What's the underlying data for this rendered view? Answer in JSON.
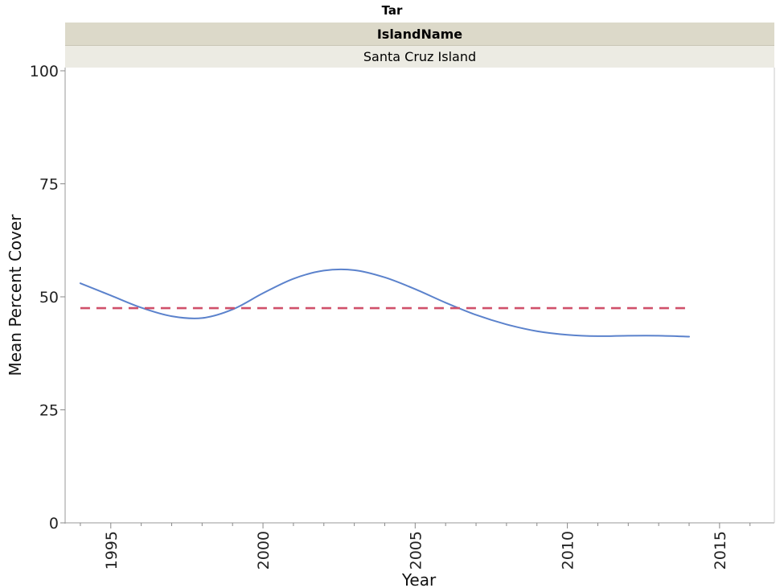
{
  "chart_data": {
    "type": "line",
    "title": "Tar",
    "facet_header": "IslandName",
    "facet_value": "Santa Cruz Island",
    "xlabel": "Year",
    "ylabel": "Mean Percent Cover",
    "xlim": [
      1993.5,
      2016.8
    ],
    "ylim": [
      0,
      100
    ],
    "x_ticks": [
      1995,
      2000,
      2005,
      2010,
      2015
    ],
    "y_ticks": [
      0,
      25,
      50,
      75,
      100
    ],
    "grid": false,
    "series": [
      {
        "style": "smooth-solid",
        "color": "#5b82cc",
        "points": [
          {
            "x": 1994,
            "y": 53
          },
          {
            "x": 1995,
            "y": 50.3
          },
          {
            "x": 1996,
            "y": 47.6
          },
          {
            "x": 1997,
            "y": 45.7
          },
          {
            "x": 1998,
            "y": 45.3
          },
          {
            "x": 1999,
            "y": 47.2
          },
          {
            "x": 2000,
            "y": 50.8
          },
          {
            "x": 2001,
            "y": 54.0
          },
          {
            "x": 2002,
            "y": 55.8
          },
          {
            "x": 2003,
            "y": 55.9
          },
          {
            "x": 2004,
            "y": 54.3
          },
          {
            "x": 2005,
            "y": 51.7
          },
          {
            "x": 2006,
            "y": 48.7
          },
          {
            "x": 2007,
            "y": 46.0
          },
          {
            "x": 2008,
            "y": 43.9
          },
          {
            "x": 2009,
            "y": 42.4
          },
          {
            "x": 2010,
            "y": 41.6
          },
          {
            "x": 2011,
            "y": 41.3
          },
          {
            "x": 2012,
            "y": 41.4
          },
          {
            "x": 2013,
            "y": 41.4
          },
          {
            "x": 2014,
            "y": 41.2
          }
        ]
      },
      {
        "style": "dashed",
        "color": "#d0506a",
        "points": [
          {
            "x": 1994,
            "y": 47.5
          },
          {
            "x": 2014,
            "y": 47.5
          }
        ]
      }
    ]
  }
}
